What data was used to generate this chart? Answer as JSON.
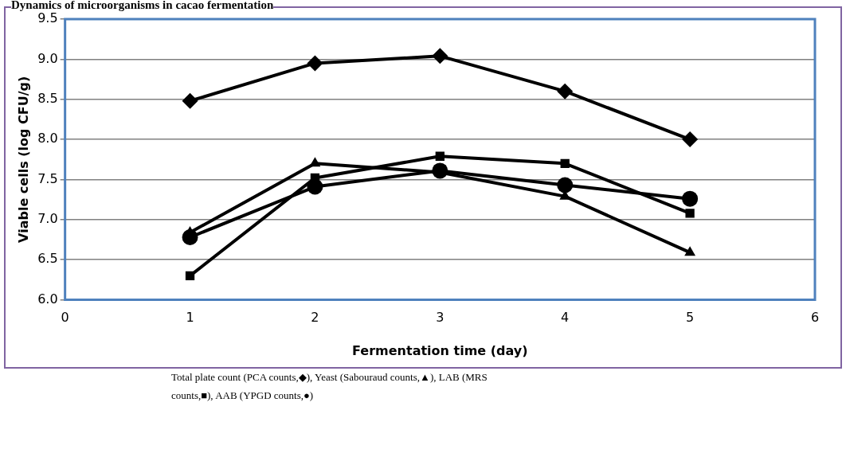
{
  "chart_data": {
    "type": "line",
    "title": "Dynamics of microorganisms in cacao fermentation",
    "xlabel": "Fermentation time (day)",
    "ylabel": "Viable cells (log CFU/g)",
    "x": [
      1,
      2,
      3,
      4,
      5
    ],
    "series": [
      {
        "color": "#000000",
        "marker": "diamond",
        "values": [
          8.48,
          8.95,
          9.04,
          8.6,
          8.0
        ]
      },
      {
        "color": "#000000",
        "marker": "triangle",
        "values": [
          6.84,
          7.7,
          7.59,
          7.29,
          6.59
        ]
      },
      {
        "color": "#000000",
        "marker": "square",
        "values": [
          6.3,
          7.52,
          7.79,
          7.7,
          7.08
        ]
      },
      {
        "color": "#000000",
        "marker": "circle",
        "values": [
          6.78,
          7.41,
          7.61,
          7.43,
          7.26
        ]
      }
    ],
    "xlim": [
      0,
      6
    ],
    "xticks": [
      0,
      1,
      2,
      3,
      4,
      5,
      6
    ],
    "ylim": [
      6,
      9.5
    ],
    "yticks": [
      {
        "value": 6,
        "label": "6.0"
      },
      6.5,
      {
        "value": 7,
        "label": "7.0"
      },
      7.5,
      {
        "value": 8,
        "label": "8.0"
      },
      8.5,
      {
        "value": 9,
        "label": "9.0"
      },
      9.5
    ],
    "grid": "y",
    "legend": false,
    "line_style": "solid",
    "annotations": [
      "Total plate count (PCA counts,◆), Yeast (Sabouraud counts,▲), LAB (MRS counts,■), AAB (YPGD counts,●)"
    ]
  }
}
